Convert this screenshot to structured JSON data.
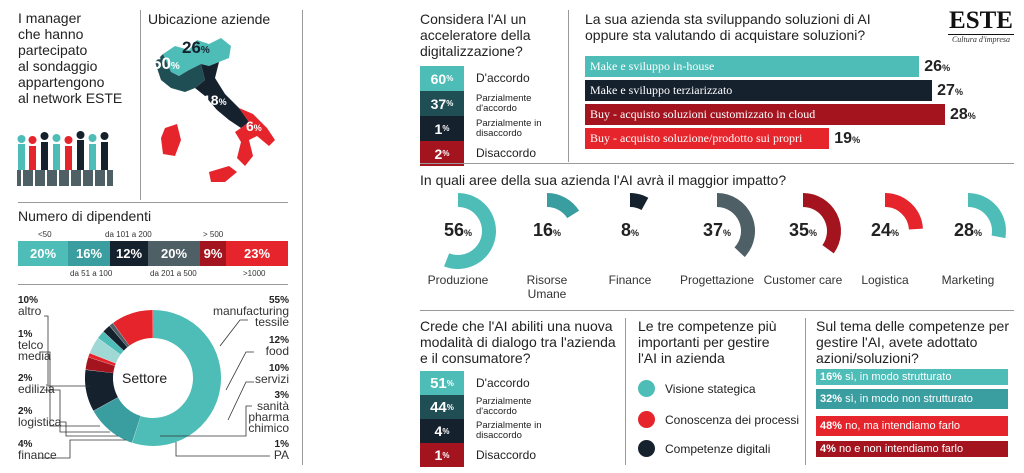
{
  "intro": {
    "text": "I manager che hanno partecipato al sondaggio appartengono al network ESTE",
    "lines": [
      "I manager",
      "che hanno",
      "partecipato",
      "al sondaggio",
      "appartengono",
      "al network ESTE"
    ]
  },
  "map": {
    "title": "Ubicazione aziende",
    "values": [
      {
        "label": "26",
        "unit": "%"
      },
      {
        "label": "50",
        "unit": "%"
      },
      {
        "label": "18",
        "unit": "%"
      },
      {
        "label": "6",
        "unit": "%"
      }
    ]
  },
  "employees": {
    "title": "Numero di dipendenti",
    "segments": [
      {
        "label": "<50",
        "value": "20%",
        "color": "#4ebdb7"
      },
      {
        "label": "da 51 a 100",
        "value": "16%",
        "color": "#3a9ea0"
      },
      {
        "label": "da 101 a 200",
        "value": "12%",
        "color": "#16212e"
      },
      {
        "label": "da 201 a 500",
        "value": "20%",
        "color": "#4f5f66"
      },
      {
        "label": "> 500",
        "value": "9%",
        "color": "#a3141f"
      },
      {
        "label": ">1000",
        "value": "23%",
        "color": "#e5242b"
      }
    ]
  },
  "sector": {
    "center": "Settore",
    "items": [
      {
        "value": "10%",
        "label": "altro",
        "fraction": 10,
        "color": "#e5242b"
      },
      {
        "value": "1%",
        "label": "telco media",
        "fraction": 1,
        "color": "#4f5f66"
      },
      {
        "value": "2%",
        "label": "edilizia",
        "fraction": 2,
        "color": "#16212e"
      },
      {
        "value": "2%",
        "label": "logistica",
        "fraction": 2,
        "color": "#4ebdb7"
      },
      {
        "value": "4%",
        "label": "finance",
        "fraction": 4,
        "color": "#9fd8d4"
      },
      {
        "value": "55%",
        "label": "manufacturing tessile",
        "fraction": 55,
        "color": "#4ebdb7"
      },
      {
        "value": "12%",
        "label": "food",
        "fraction": 12,
        "color": "#3a9ea0"
      },
      {
        "value": "10%",
        "label": "servizi",
        "fraction": 10,
        "color": "#16212e"
      },
      {
        "value": "3%",
        "label": "sanità pharma chimico",
        "fraction": 3,
        "color": "#a3141f"
      },
      {
        "value": "1%",
        "label": "PA",
        "fraction": 1,
        "color": "#e5242b"
      }
    ]
  },
  "accelerator": {
    "title": "Considera l'AI un acceleratore della digitalizzazione?",
    "rows": [
      {
        "value": "60",
        "unit": "%",
        "label": "D'accordo",
        "color": "#4ebdb7"
      },
      {
        "value": "37",
        "unit": "%",
        "label": "Parzialmente d'accordo",
        "color": "#1f4e55"
      },
      {
        "value": "1",
        "unit": "%",
        "label": "Parzialmente in disaccordo",
        "color": "#16212e"
      },
      {
        "value": "2",
        "unit": "%",
        "label": "Disaccordo",
        "color": "#a3141f"
      }
    ]
  },
  "solutions": {
    "title": "La sua azienda sta sviluppando soluzioni di AI oppure sta valutando di acquistare soluzioni?",
    "brand": "ESTE",
    "brand_sub": "Cultura d'impresa",
    "bars": [
      {
        "label": "Make e sviluppo in-house",
        "value": 26,
        "unit": "%",
        "color": "#4ebdb7"
      },
      {
        "label": "Make e sviluppo terziarizzato",
        "value": 27,
        "unit": "%",
        "color": "#16212e"
      },
      {
        "label": "Buy - acquisto soluzioni customizzato in cloud",
        "value": 28,
        "unit": "%",
        "color": "#a3141f"
      },
      {
        "label": "Buy - acquisto soluzione/prodotto sui propri server",
        "value": 19,
        "unit": "%",
        "color": "#e5242b"
      }
    ]
  },
  "impact": {
    "title": "In quali aree della sua azienda l'AI avrà il maggior impatto?",
    "items": [
      {
        "value": 56,
        "unit": "%",
        "label": "Produzione",
        "color": "#4ebdb7"
      },
      {
        "value": 16,
        "unit": "%",
        "label": "Risorse Umane",
        "color": "#3a9ea0"
      },
      {
        "value": 8,
        "unit": "%",
        "label": "Finance",
        "color": "#16212e"
      },
      {
        "value": 37,
        "unit": "%",
        "label": "Progettazione",
        "color": "#4f5f66"
      },
      {
        "value": 35,
        "unit": "%",
        "label": "Customer care",
        "color": "#a3141f"
      },
      {
        "value": 24,
        "unit": "%",
        "label": "Logistica",
        "color": "#e5242b"
      },
      {
        "value": 28,
        "unit": "%",
        "label": "Marketing",
        "color": "#4ebdb7"
      }
    ]
  },
  "dialog": {
    "title": "Crede che l'AI abiliti una nuova modalità di dialogo tra l'azienda e il consumatore?",
    "rows": [
      {
        "value": "51",
        "unit": "%",
        "label": "D'accordo",
        "color": "#4ebdb7"
      },
      {
        "value": "44",
        "unit": "%",
        "label": "Parzialmente d'accordo",
        "color": "#1f4e55"
      },
      {
        "value": "4",
        "unit": "%",
        "label": "Parzialmente in disaccordo",
        "color": "#16212e"
      },
      {
        "value": "1",
        "unit": "%",
        "label": "Disaccordo",
        "color": "#a3141f"
      }
    ]
  },
  "skills": {
    "title": "Le tre competenze più importanti per gestire l'AI in azienda",
    "items": [
      {
        "label": "Visione stategica",
        "color": "#4ebdb7"
      },
      {
        "label": "Conoscenza dei processi",
        "color": "#e5242b"
      },
      {
        "label": "Competenze digitali",
        "color": "#16212e"
      }
    ]
  },
  "adopted": {
    "title": "Sul tema delle competenze per gestire l'AI, avete adottato azioni/soluzioni?",
    "bars": [
      {
        "value": "16%",
        "label": "sì, in modo strutturato",
        "color": "#4ebdb7"
      },
      {
        "value": "32%",
        "label": "sì, in modo non strutturato",
        "color": "#3a9ea0"
      },
      {
        "value": "48%",
        "label": "no, ma intendiamo farlo",
        "color": "#e5242b"
      },
      {
        "value": "4%",
        "label": "no e non intendiamo farlo",
        "color": "#a3141f"
      }
    ]
  }
}
